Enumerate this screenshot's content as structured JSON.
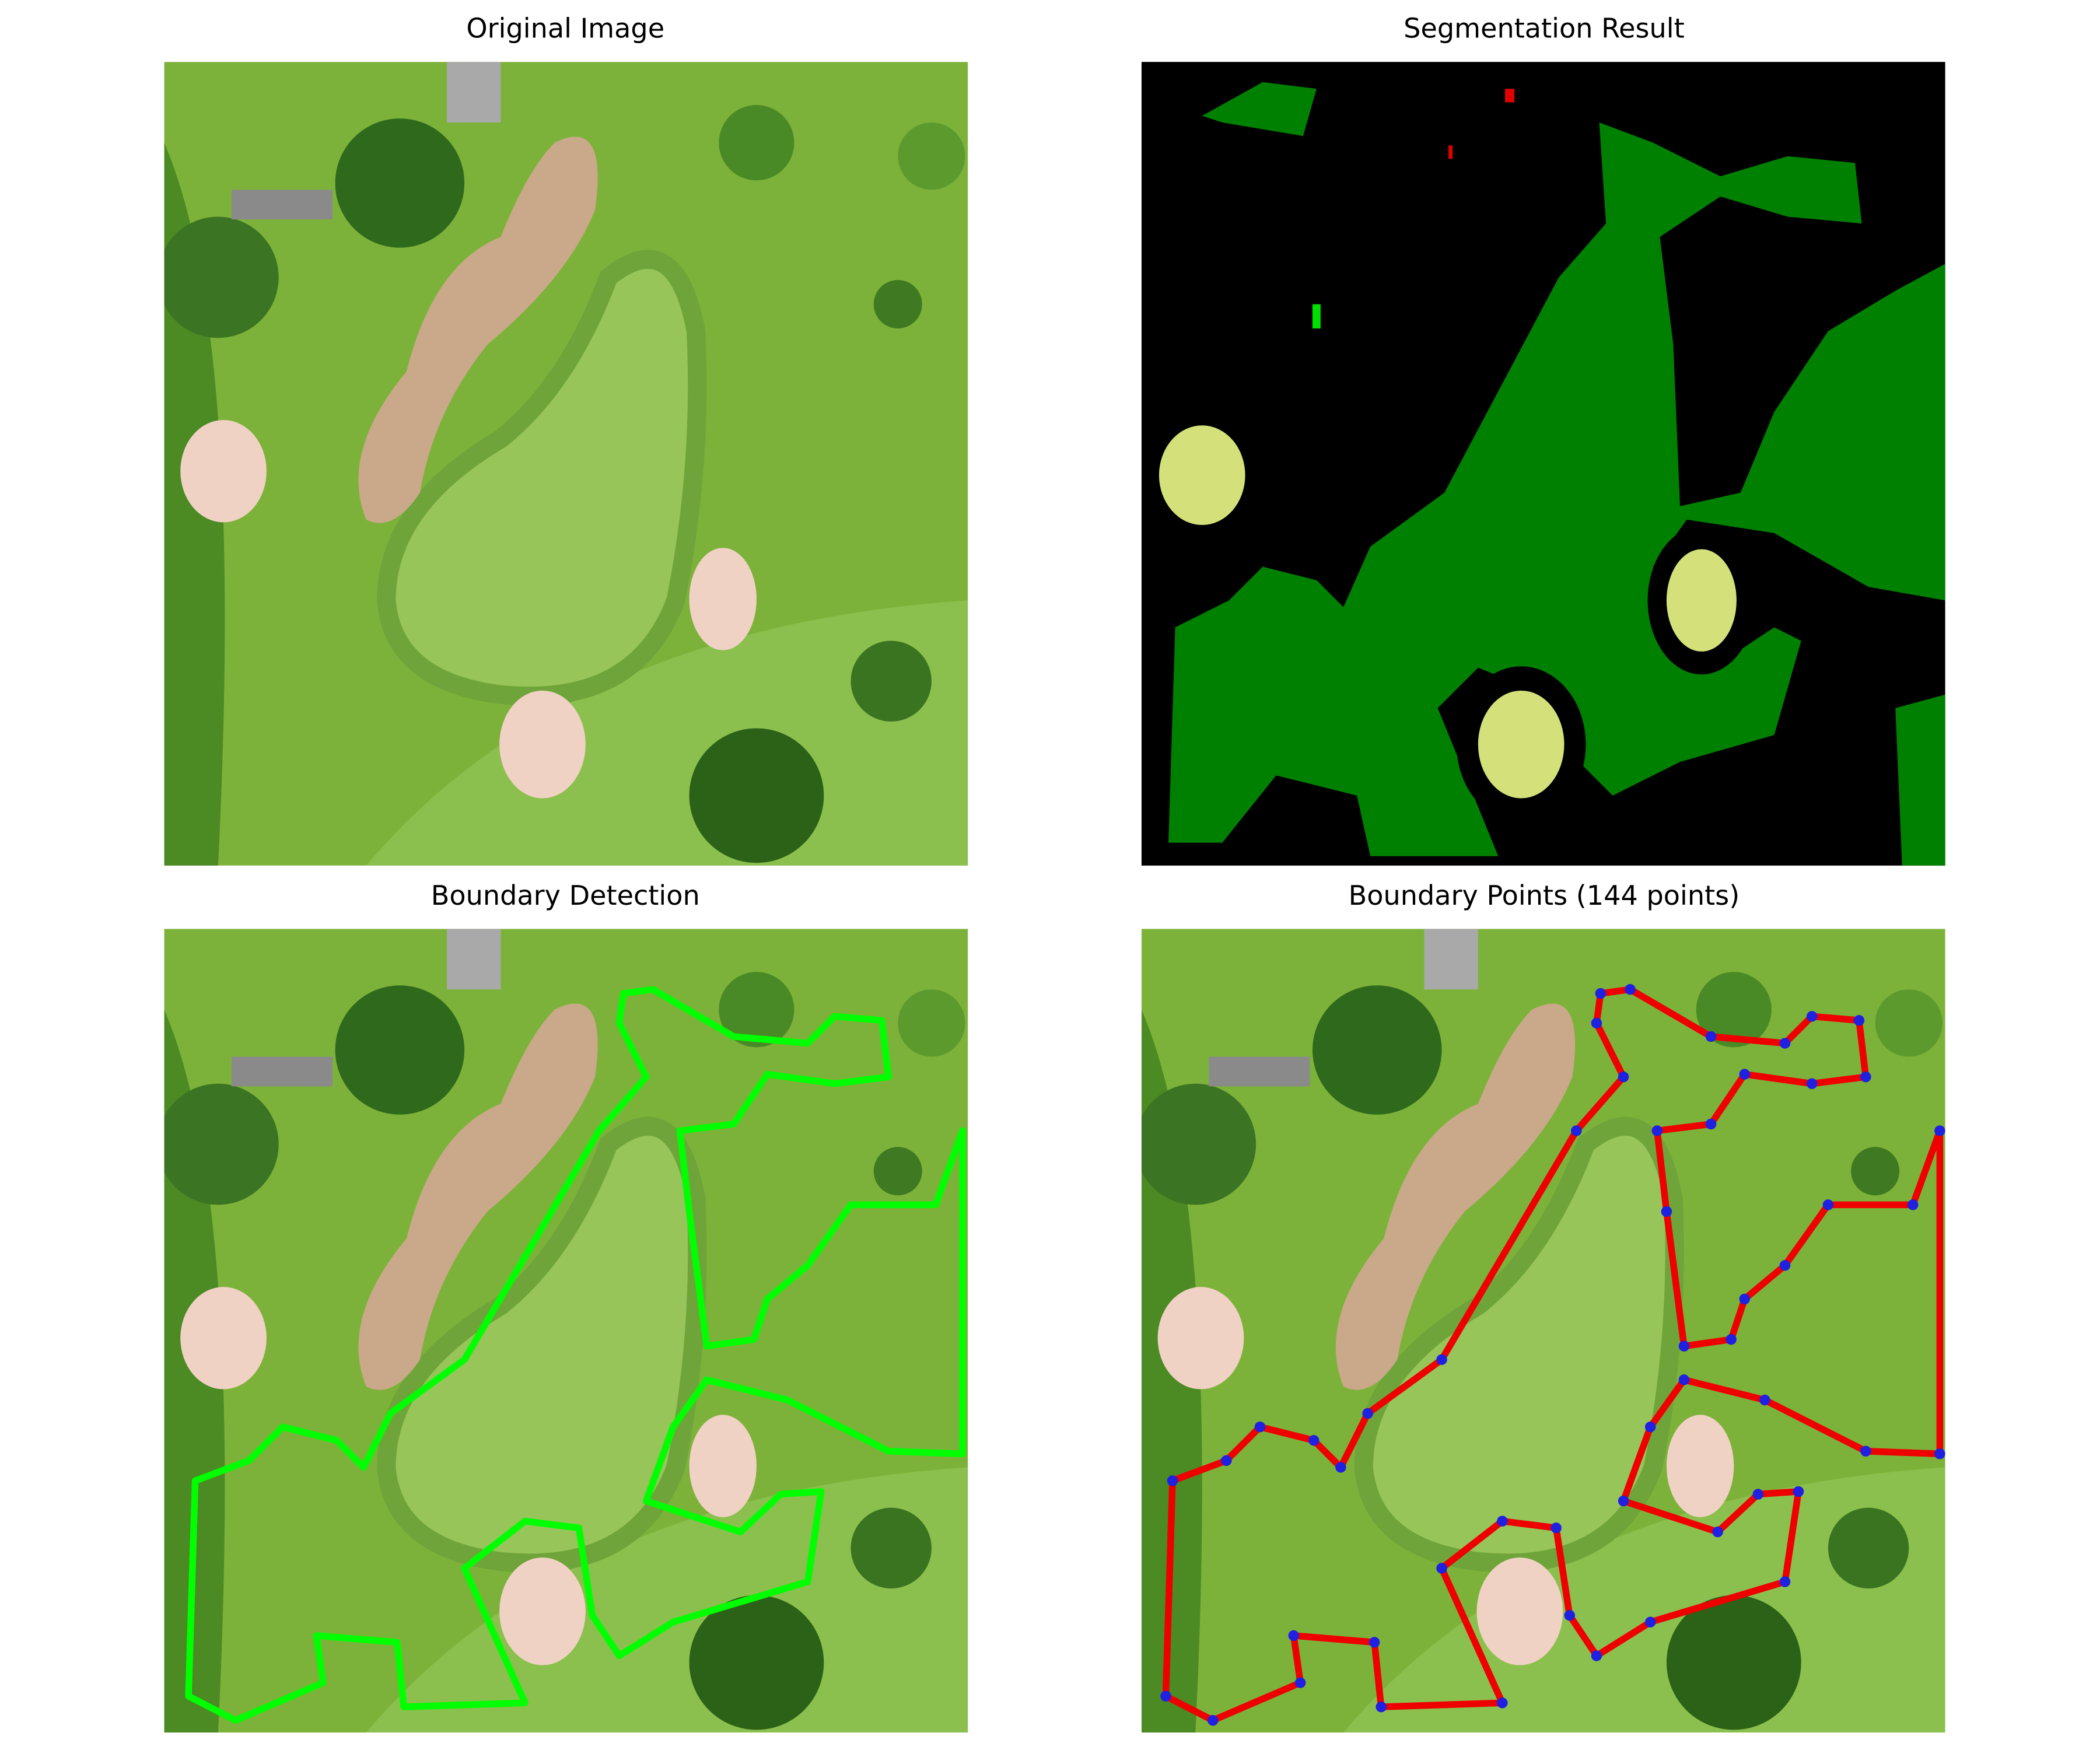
{
  "panels": [
    {
      "title": "Original Image"
    },
    {
      "title": "Segmentation Result"
    },
    {
      "title": "Boundary Detection"
    },
    {
      "title": "Boundary Points (144 points)"
    }
  ]
}
